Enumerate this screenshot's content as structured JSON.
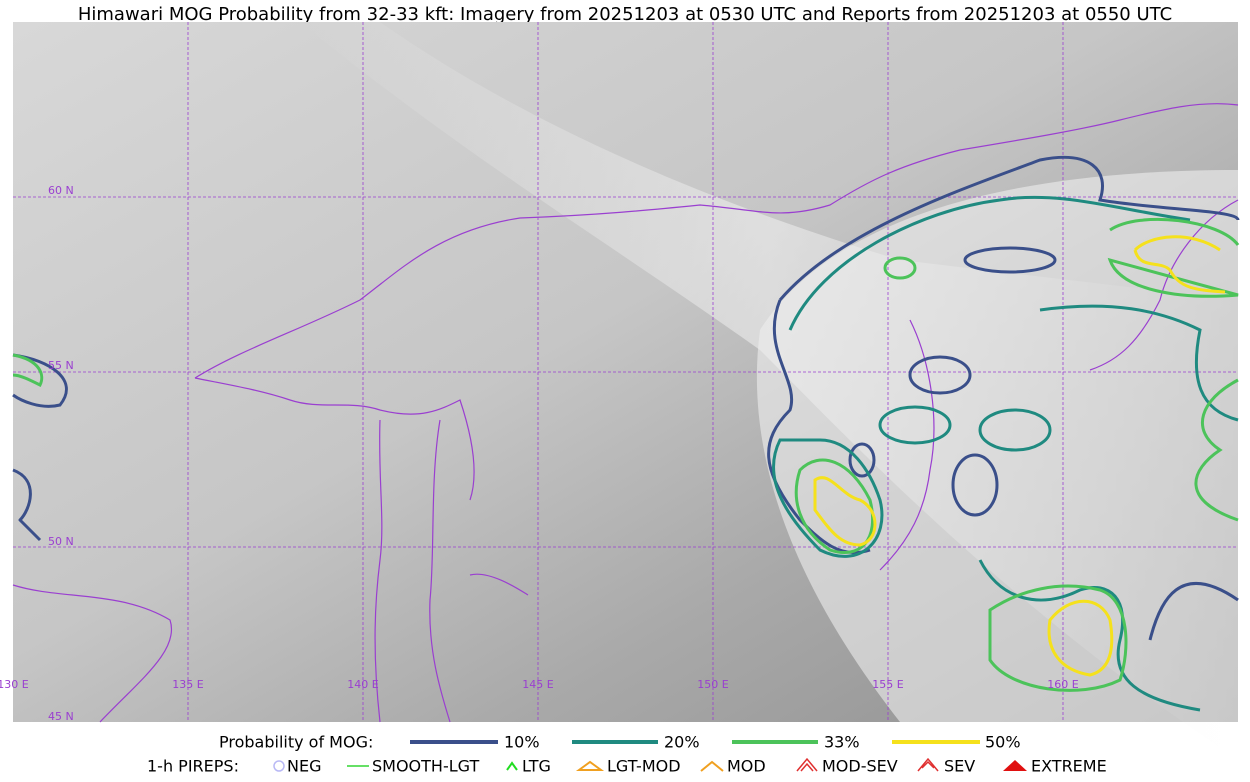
{
  "title": "Himawari MOG Probability from 32-33 kft: Imagery from 20251203 at 0530 UTC and Reports from 20251203 at 0550 UTC",
  "map": {
    "lat_labels": [
      "60 N",
      "55 N",
      "50 N",
      "45 N"
    ],
    "lon_labels": [
      "130 E",
      "135 E",
      "140 E",
      "145 E",
      "150 E",
      "155 E",
      "160 E"
    ]
  },
  "legend": {
    "probability": {
      "label": "Probability of MOG:",
      "items": [
        "10%",
        "20%",
        "33%",
        "50%"
      ]
    },
    "pireps": {
      "label": "1-h PIREPS:",
      "items": [
        "NEG",
        "SMOOTH-LGT",
        "LTG",
        "LGT-MOD",
        "MOD",
        "MOD-SEV",
        "SEV",
        "EXTREME"
      ]
    }
  }
}
